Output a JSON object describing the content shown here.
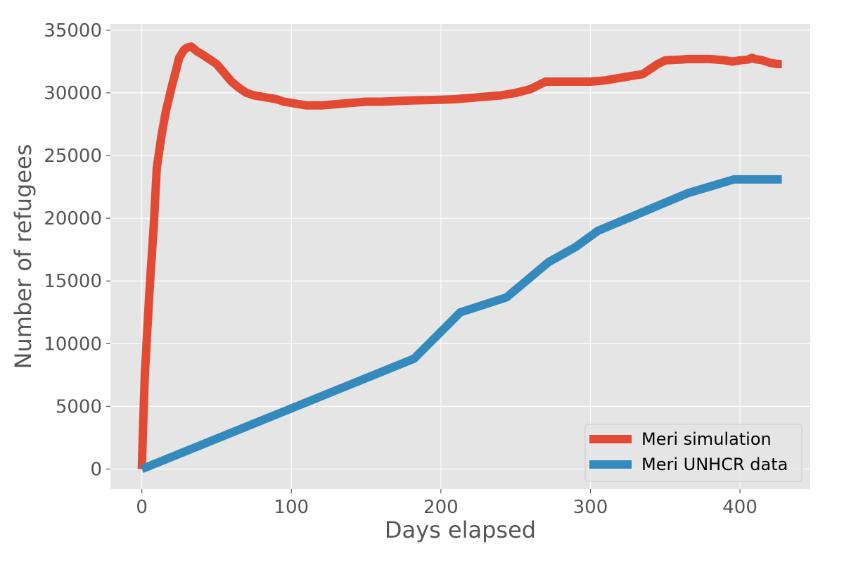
{
  "chart_data": {
    "type": "line",
    "title": "",
    "xlabel": "Days elapsed",
    "ylabel": "Number of refugees",
    "xlim": [
      -21,
      447
    ],
    "ylim": [
      -1600,
      35500
    ],
    "xticks": [
      0,
      100,
      200,
      300,
      400
    ],
    "yticks": [
      0,
      5000,
      10000,
      15000,
      20000,
      25000,
      30000,
      35000
    ],
    "grid": true,
    "legend_position": "lower-right",
    "colors": {
      "plot_background": "#e5e5e5",
      "grid": "#ffffff",
      "tick_text": "#555555",
      "label_text": "#555555"
    },
    "series": [
      {
        "name": "Meri simulation",
        "color": "#e24a33",
        "x": [
          0,
          1,
          2,
          5,
          8,
          10,
          13,
          16,
          20,
          25,
          28,
          30,
          33,
          35,
          37,
          40,
          45,
          50,
          55,
          60,
          65,
          70,
          75,
          80,
          85,
          90,
          95,
          100,
          105,
          110,
          115,
          120,
          125,
          130,
          140,
          150,
          155,
          160,
          170,
          180,
          190,
          200,
          210,
          220,
          230,
          240,
          250,
          260,
          265,
          270,
          275,
          280,
          290,
          300,
          305,
          310,
          320,
          330,
          335,
          340,
          345,
          350,
          360,
          365,
          370,
          380,
          390,
          395,
          400,
          405,
          408,
          410,
          415,
          420,
          425,
          428
        ],
        "y": [
          0,
          4000,
          7500,
          14000,
          19500,
          24000,
          26500,
          28500,
          30500,
          32800,
          33400,
          33600,
          33700,
          33500,
          33300,
          33100,
          32700,
          32300,
          31600,
          30900,
          30400,
          30000,
          29800,
          29700,
          29600,
          29500,
          29300,
          29200,
          29100,
          29000,
          29000,
          29000,
          29050,
          29100,
          29200,
          29300,
          29300,
          29300,
          29350,
          29400,
          29420,
          29450,
          29500,
          29600,
          29700,
          29800,
          30000,
          30300,
          30600,
          30900,
          30900,
          30900,
          30900,
          30900,
          30950,
          31000,
          31200,
          31400,
          31500,
          31900,
          32300,
          32600,
          32650,
          32700,
          32700,
          32700,
          32600,
          32500,
          32600,
          32650,
          32800,
          32700,
          32600,
          32400,
          32300,
          32300
        ]
      },
      {
        "name": "Meri UNHCR data",
        "color": "#348abd",
        "x": [
          0,
          182,
          213,
          244,
          272,
          290,
          305,
          335,
          365,
          396,
          428
        ],
        "y": [
          0,
          8800,
          12500,
          13700,
          16500,
          17700,
          19000,
          20500,
          22000,
          23100,
          23100
        ]
      }
    ]
  }
}
